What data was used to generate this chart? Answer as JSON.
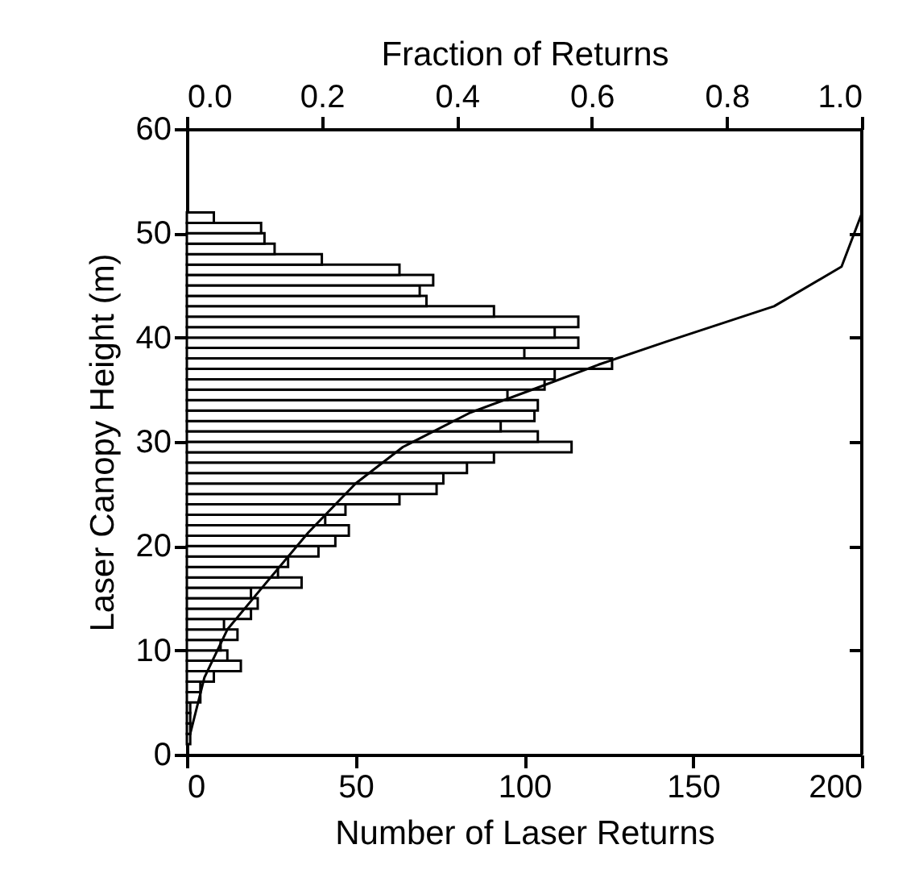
{
  "chart_data": {
    "type": "histogram",
    "orientation": "horizontal",
    "color": "#ffffff",
    "xlabel": "Number of Laser Returns",
    "ylabel": "Laser Canopy Height (m)",
    "x2label": "Fraction of Returns",
    "bins": [
      1,
      2,
      3,
      4,
      5,
      6,
      7,
      8,
      9,
      10,
      11,
      12,
      13,
      14,
      15,
      16,
      17,
      18,
      19,
      20,
      21,
      22,
      23,
      24,
      25,
      26,
      27,
      28,
      29,
      30,
      31,
      32,
      33,
      34,
      35,
      36,
      37,
      38,
      39,
      40,
      41,
      42,
      43,
      44,
      45,
      46,
      47,
      48,
      49,
      50,
      51,
      52
    ],
    "values": [
      1,
      1,
      1,
      1,
      4,
      4,
      8,
      16,
      12,
      10,
      15,
      11,
      19,
      21,
      19,
      34,
      27,
      30,
      39,
      44,
      48,
      41,
      47,
      63,
      74,
      76,
      83,
      91,
      114,
      104,
      93,
      103,
      104,
      95,
      106,
      109,
      126,
      100,
      116,
      109,
      116,
      91,
      71,
      69,
      73,
      63,
      40,
      26,
      23,
      22,
      8
    ],
    "xlim": [
      0,
      200
    ],
    "xticks": [
      0,
      50,
      100,
      150,
      200
    ],
    "x2lim": [
      0,
      1
    ],
    "x2ticks": [
      {
        "value": 0,
        "label": "0.0"
      },
      {
        "value": 0.2,
        "label": "0.2"
      },
      {
        "value": 0.4,
        "label": "0.4"
      },
      {
        "value": 0.6,
        "label": "0.6"
      },
      {
        "value": 0.8,
        "label": "0.8"
      },
      {
        "value": 1,
        "label": "1.0"
      }
    ],
    "ylim": [
      0,
      60
    ],
    "yticks": [
      0,
      10,
      20,
      30,
      40,
      50,
      60
    ],
    "series": [
      {
        "type": "line",
        "axis": "x2",
        "color": "#000000",
        "values": [
          0.005,
          0.026,
          0.06,
          0.11,
          0.18,
          0.25,
          0.32,
          0.42,
          0.52,
          0.61,
          0.71,
          0.87,
          0.97,
          1.0
        ],
        "x": [
          2,
          7.4,
          12,
          15.9,
          21.3,
          26,
          29.5,
          32.8,
          35.2,
          37.4,
          39.6,
          43,
          46.8,
          51.9
        ]
      }
    ],
    "grid": false
  }
}
